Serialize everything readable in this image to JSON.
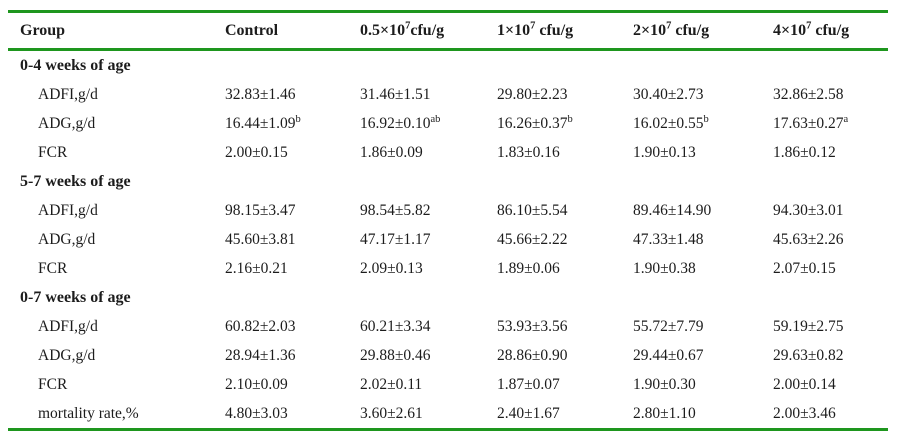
{
  "table": {
    "accent_color": "#1e961e",
    "columns": [
      {
        "pre": "Group",
        "sup": "",
        "post": ""
      },
      {
        "pre": "Control",
        "sup": "",
        "post": ""
      },
      {
        "pre": "0.5×10",
        "sup": "7",
        "post": "cfu/g"
      },
      {
        "pre": "1×10",
        "sup": "7",
        "post": " cfu/g"
      },
      {
        "pre": "2×10",
        "sup": "7",
        "post": " cfu/g"
      },
      {
        "pre": "4×10",
        "sup": "7",
        "post": " cfu/g"
      }
    ],
    "sections": [
      {
        "title": "0-4 weeks of age",
        "rows": [
          {
            "label": "ADFI,g/d",
            "cells": [
              {
                "v": "32.83±1.46",
                "sup": ""
              },
              {
                "v": "31.46±1.51",
                "sup": ""
              },
              {
                "v": "29.80±2.23",
                "sup": ""
              },
              {
                "v": "30.40±2.73",
                "sup": ""
              },
              {
                "v": "32.86±2.58",
                "sup": ""
              }
            ]
          },
          {
            "label": "ADG,g/d",
            "cells": [
              {
                "v": "16.44±1.09",
                "sup": "b"
              },
              {
                "v": "16.92±0.10",
                "sup": "ab"
              },
              {
                "v": "16.26±0.37",
                "sup": "b"
              },
              {
                "v": "16.02±0.55",
                "sup": "b"
              },
              {
                "v": "17.63±0.27",
                "sup": "a"
              }
            ]
          },
          {
            "label": "FCR",
            "cells": [
              {
                "v": "2.00±0.15",
                "sup": ""
              },
              {
                "v": "1.86±0.09",
                "sup": ""
              },
              {
                "v": "1.83±0.16",
                "sup": ""
              },
              {
                "v": "1.90±0.13",
                "sup": ""
              },
              {
                "v": "1.86±0.12",
                "sup": ""
              }
            ]
          }
        ]
      },
      {
        "title": "5-7 weeks of age",
        "rows": [
          {
            "label": "ADFI,g/d",
            "cells": [
              {
                "v": "98.15±3.47",
                "sup": ""
              },
              {
                "v": "98.54±5.82",
                "sup": ""
              },
              {
                "v": "86.10±5.54",
                "sup": ""
              },
              {
                "v": "89.46±14.90",
                "sup": ""
              },
              {
                "v": "94.30±3.01",
                "sup": ""
              }
            ]
          },
          {
            "label": "ADG,g/d",
            "cells": [
              {
                "v": "45.60±3.81",
                "sup": ""
              },
              {
                "v": "47.17±1.17",
                "sup": ""
              },
              {
                "v": "45.66±2.22",
                "sup": ""
              },
              {
                "v": "47.33±1.48",
                "sup": ""
              },
              {
                "v": "45.63±2.26",
                "sup": ""
              }
            ]
          },
          {
            "label": "FCR",
            "cells": [
              {
                "v": "2.16±0.21",
                "sup": ""
              },
              {
                "v": "2.09±0.13",
                "sup": ""
              },
              {
                "v": "1.89±0.06",
                "sup": ""
              },
              {
                "v": "1.90±0.38",
                "sup": ""
              },
              {
                "v": "2.07±0.15",
                "sup": ""
              }
            ]
          }
        ]
      },
      {
        "title": "0-7 weeks of age",
        "rows": [
          {
            "label": "ADFI,g/d",
            "cells": [
              {
                "v": "60.82±2.03",
                "sup": ""
              },
              {
                "v": "60.21±3.34",
                "sup": ""
              },
              {
                "v": "53.93±3.56",
                "sup": ""
              },
              {
                "v": "55.72±7.79",
                "sup": ""
              },
              {
                "v": "59.19±2.75",
                "sup": ""
              }
            ]
          },
          {
            "label": "ADG,g/d",
            "cells": [
              {
                "v": "28.94±1.36",
                "sup": ""
              },
              {
                "v": "29.88±0.46",
                "sup": ""
              },
              {
                "v": "28.86±0.90",
                "sup": ""
              },
              {
                "v": "29.44±0.67",
                "sup": ""
              },
              {
                "v": "29.63±0.82",
                "sup": ""
              }
            ]
          },
          {
            "label": "FCR",
            "cells": [
              {
                "v": "2.10±0.09",
                "sup": ""
              },
              {
                "v": "2.02±0.11",
                "sup": ""
              },
              {
                "v": "1.87±0.07",
                "sup": ""
              },
              {
                "v": "1.90±0.30",
                "sup": ""
              },
              {
                "v": "2.00±0.14",
                "sup": ""
              }
            ]
          },
          {
            "label": "mortality rate,%",
            "cells": [
              {
                "v": "4.80±3.03",
                "sup": ""
              },
              {
                "v": "3.60±2.61",
                "sup": ""
              },
              {
                "v": "2.40±1.67",
                "sup": ""
              },
              {
                "v": "2.80±1.10",
                "sup": ""
              },
              {
                "v": "2.00±3.46",
                "sup": ""
              }
            ]
          }
        ]
      }
    ]
  }
}
